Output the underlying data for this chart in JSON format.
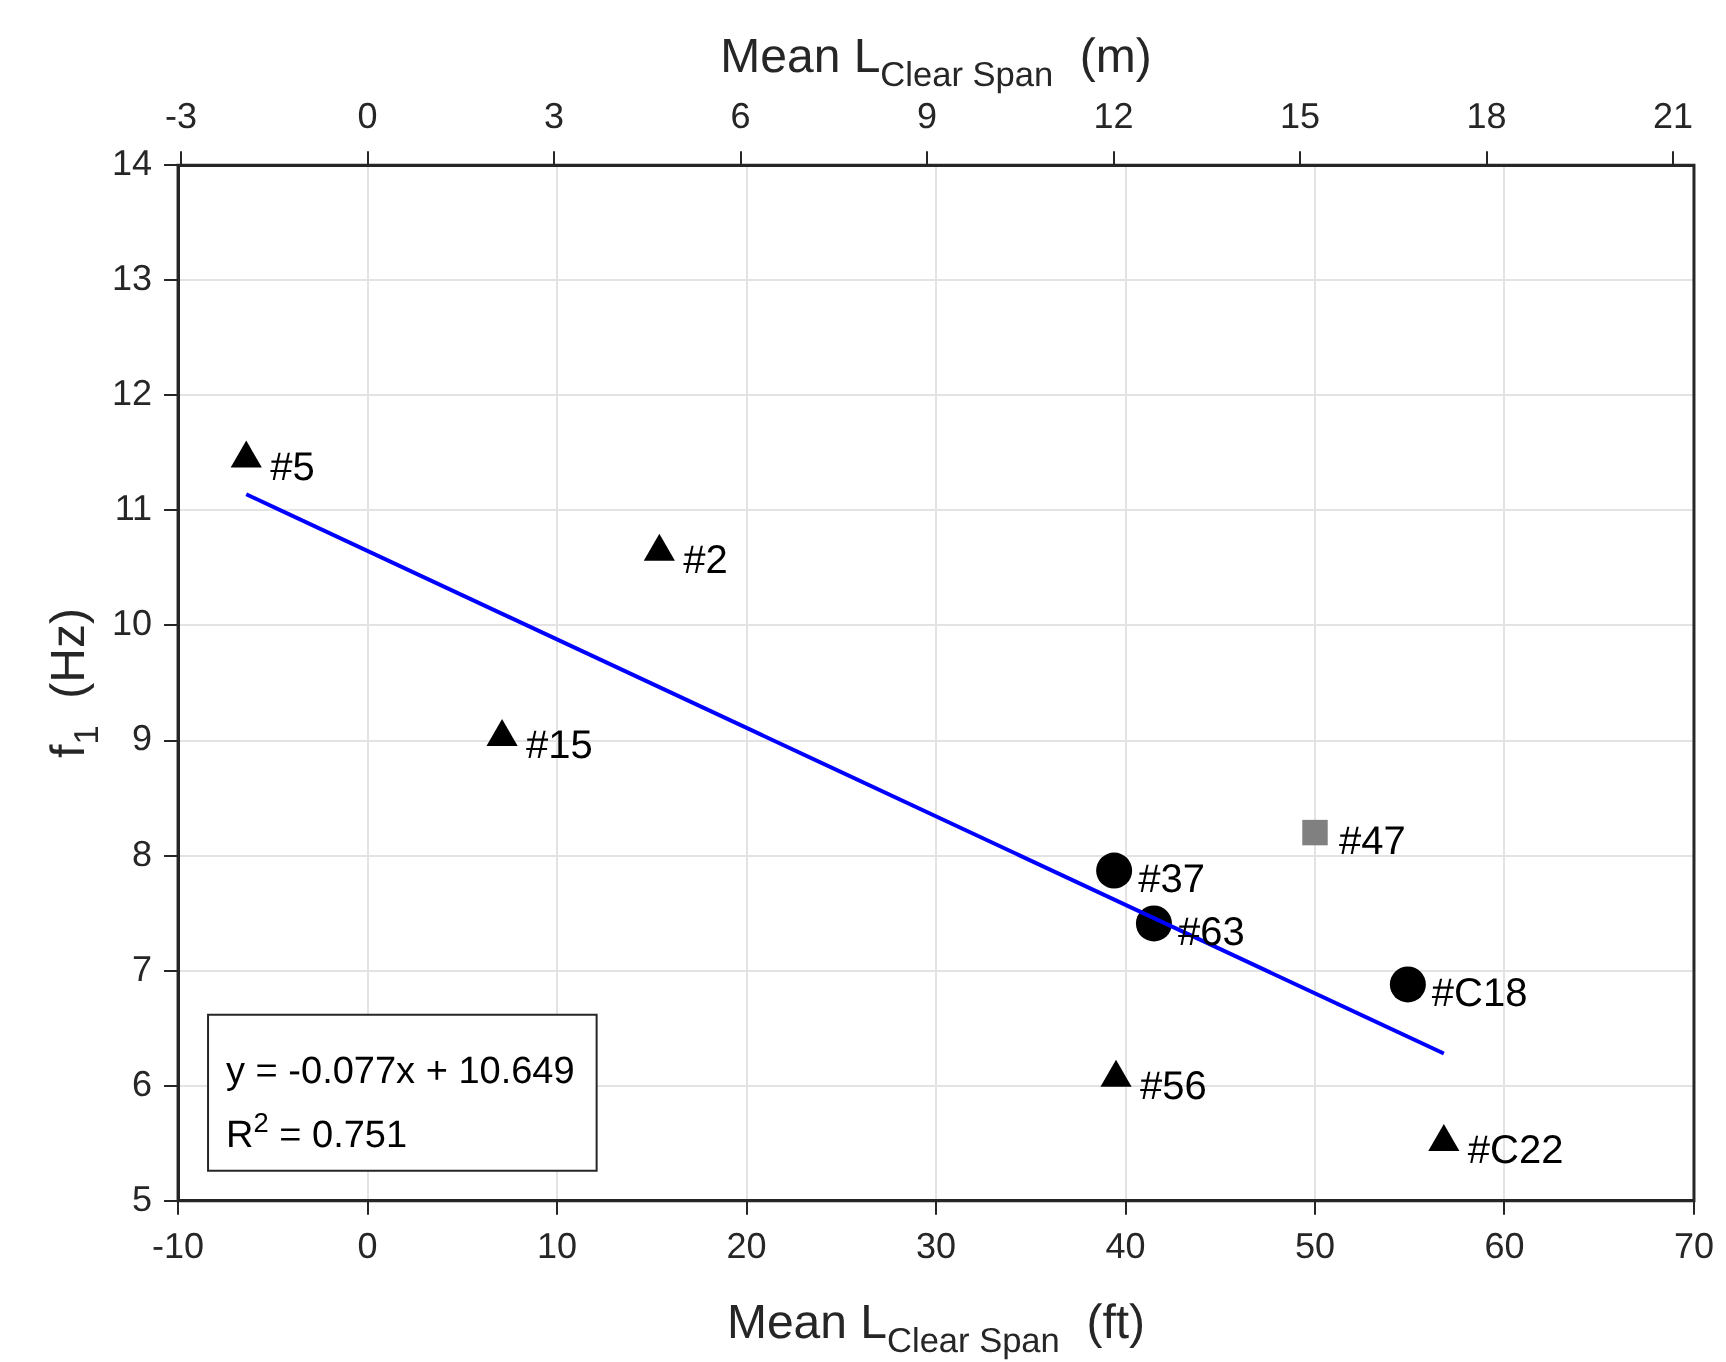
{
  "chart_data": {
    "type": "scatter",
    "xlabel": "Mean L$_{Clear Span}$  (ft)",
    "x2label": "Mean L$_{Clear Span}$  (m)",
    "ylabel": "f$_{1}$  (Hz)",
    "xlim": [
      -10,
      70
    ],
    "xticks": [
      -10,
      0,
      10,
      20,
      30,
      40,
      50,
      60,
      70
    ],
    "x2lim": [
      -3.048,
      21.336
    ],
    "x2ticks": [
      -3,
      0,
      3,
      6,
      9,
      12,
      15,
      18,
      21
    ],
    "ylim": [
      5,
      14
    ],
    "yticks": [
      5,
      6,
      7,
      8,
      9,
      10,
      11,
      12,
      13,
      14
    ],
    "grid": true,
    "legend": false,
    "series": [
      {
        "type": "scatter",
        "marker": "triangle",
        "color": "#000000",
        "x": [
          -6.4,
          15.4,
          7.1,
          39.5,
          56.8
        ],
        "values": [
          11.45,
          10.64,
          9.03,
          6.07,
          5.51
        ]
      },
      {
        "type": "scatter",
        "marker": "circle",
        "color": "#000000",
        "x": [
          39.4,
          41.5,
          54.9
        ],
        "values": [
          7.87,
          7.41,
          6.88
        ]
      },
      {
        "type": "scatter",
        "marker": "square",
        "color": "#808080",
        "x": [
          50.0
        ],
        "values": [
          8.2
        ]
      },
      {
        "type": "line",
        "marker": "none",
        "color": "#0000ff",
        "x": [
          -6.4,
          56.8
        ],
        "values": [
          11.14,
          6.28
        ]
      }
    ],
    "annotations": [
      {
        "text": "#5",
        "x": -6.4,
        "y": 11.45
      },
      {
        "text": "#2",
        "x": 15.4,
        "y": 10.64
      },
      {
        "text": "#15",
        "x": 7.1,
        "y": 9.03
      },
      {
        "text": "#56",
        "x": 39.5,
        "y": 6.07
      },
      {
        "text": "#C22",
        "x": 56.8,
        "y": 5.51
      },
      {
        "text": "#37",
        "x": 39.4,
        "y": 7.87
      },
      {
        "text": "#63",
        "x": 41.5,
        "y": 7.41
      },
      {
        "text": "#C18",
        "x": 54.9,
        "y": 6.88
      },
      {
        "text": "#47",
        "x": 50.0,
        "y": 8.2
      },
      "y = -0.077x + 10.649",
      "R$^{2}$ = 0.751"
    ]
  }
}
